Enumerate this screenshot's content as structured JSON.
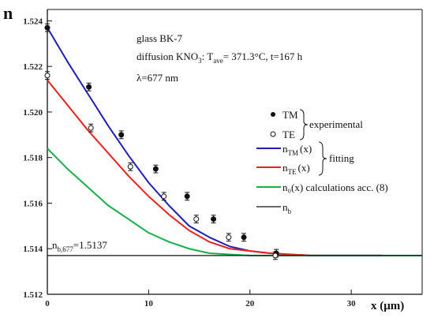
{
  "chart_data": {
    "type": "line",
    "ylabel": "n",
    "xlabel": "x (μm)",
    "xlim": [
      0,
      37
    ],
    "ylim": [
      1.512,
      1.5245
    ],
    "x_ticks": [
      0,
      10,
      20,
      30
    ],
    "y_ticks": [
      1.512,
      1.514,
      1.516,
      1.518,
      1.52,
      1.522,
      1.524
    ],
    "grid": false,
    "annotations": {
      "line1": "glass BK-7",
      "line2_pre": "diffusion KNO",
      "line2_sub": "3",
      "line2_post": ": T",
      "line2_sub2": "ave",
      "line2_end": "= 371.3°C, t=167 h",
      "line3": "λ=677 nm",
      "nb_label_main": "n",
      "nb_label_sub": "b,677",
      "nb_label_val": "=1.5137"
    },
    "legend": {
      "tm": "TM",
      "te": "TE",
      "experimental": "experimental",
      "fit_tm_main": "n",
      "fit_tm_sub": "TM",
      "fit_tm_arg": "(x)",
      "fit_te_main": "n",
      "fit_te_sub": "TE",
      "fit_te_arg": "(x)",
      "fitting": "fitting",
      "calc": "n₀(x) calculations acc. (8)",
      "nb_main": "n",
      "nb_sub": "b",
      "placement": "right"
    },
    "colors": {
      "tm_fit": "#1f1fb4",
      "te_fit": "#e8231d",
      "calc": "#16b048",
      "nb": "#111111",
      "points": "#111111"
    },
    "series": [
      {
        "name": "TM",
        "kind": "points",
        "marker": "filled",
        "points": [
          [
            0,
            1.5237
          ],
          [
            4.1,
            1.5211
          ],
          [
            7.3,
            1.519
          ],
          [
            10.7,
            1.5175
          ],
          [
            13.8,
            1.5163
          ],
          [
            16.4,
            1.5153
          ],
          [
            19.4,
            1.5145
          ],
          [
            22.6,
            1.5138
          ]
        ],
        "error": 0.00017
      },
      {
        "name": "TE",
        "kind": "points",
        "marker": "open",
        "points": [
          [
            0,
            1.5216
          ],
          [
            4.3,
            1.5193
          ],
          [
            8.2,
            1.5176
          ],
          [
            11.5,
            1.5163
          ],
          [
            14.7,
            1.5153
          ],
          [
            17.9,
            1.5145
          ],
          [
            22.5,
            1.5137
          ]
        ],
        "error": 0.00017
      },
      {
        "name": "n_TM(x)",
        "kind": "line",
        "x": [
          0,
          2,
          4,
          6,
          8,
          10,
          12,
          14,
          16,
          18,
          20,
          22,
          24,
          26,
          28,
          30,
          33
        ],
        "y": [
          1.5237,
          1.5222,
          1.5208,
          1.5194,
          1.5181,
          1.5169,
          1.5159,
          1.515,
          1.5145,
          1.5141,
          1.5139,
          1.5138,
          1.51375,
          1.5137,
          1.5137,
          1.5137,
          1.5137
        ]
      },
      {
        "name": "n_TE(x)",
        "kind": "line",
        "x": [
          0,
          2,
          4,
          6,
          8,
          10,
          12,
          14,
          16,
          18,
          20,
          22,
          24,
          26,
          28,
          30,
          33
        ],
        "y": [
          1.5214,
          1.5203,
          1.5192,
          1.5182,
          1.5172,
          1.5163,
          1.5155,
          1.5148,
          1.5143,
          1.514,
          1.5139,
          1.5138,
          1.51375,
          1.5137,
          1.5137,
          1.5137,
          1.5137
        ]
      },
      {
        "name": "n0(x) calculations acc. (8)",
        "kind": "line",
        "x": [
          0,
          2,
          4,
          6,
          8,
          10,
          12,
          14,
          16,
          18,
          20,
          22,
          24,
          26,
          28,
          30,
          33,
          37
        ],
        "y": [
          1.5184,
          1.5175,
          1.5167,
          1.5159,
          1.5153,
          1.5147,
          1.5143,
          1.514,
          1.5138,
          1.51375,
          1.5137,
          1.5137,
          1.5137,
          1.5137,
          1.5137,
          1.5137,
          1.5137,
          1.5137
        ]
      },
      {
        "name": "n_b",
        "kind": "hline",
        "y": 1.5137
      }
    ]
  }
}
